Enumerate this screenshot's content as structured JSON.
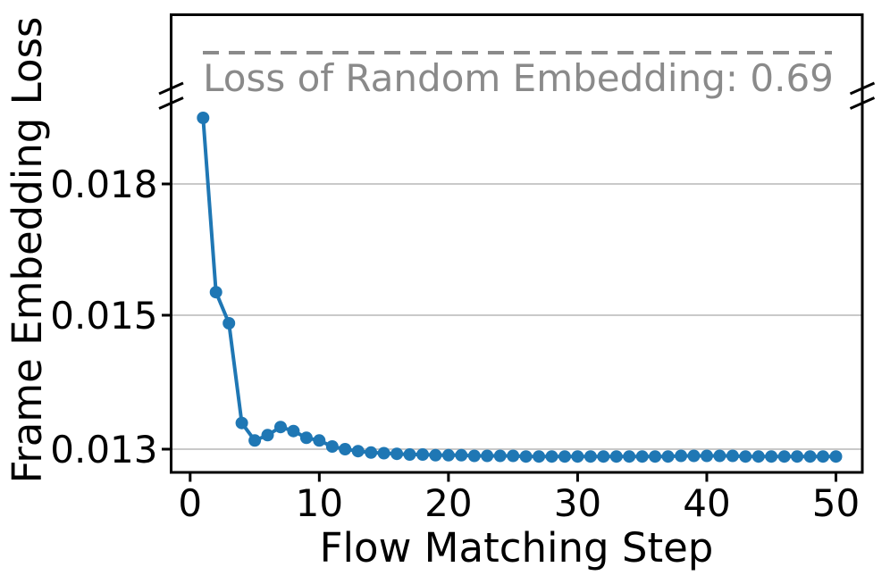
{
  "chart_data": {
    "type": "line",
    "title": "",
    "xlabel": "Flow Matching Step",
    "ylabel": "Frame Embedding Loss",
    "x": [
      1,
      2,
      3,
      4,
      5,
      6,
      7,
      8,
      9,
      10,
      11,
      12,
      13,
      14,
      15,
      16,
      17,
      18,
      19,
      20,
      21,
      22,
      23,
      24,
      25,
      26,
      27,
      28,
      29,
      30,
      31,
      32,
      33,
      34,
      35,
      36,
      37,
      38,
      39,
      40,
      41,
      42,
      43,
      44,
      45,
      46,
      47,
      48,
      49,
      50
    ],
    "series": [
      {
        "name": "Frame Embedding Loss",
        "values": [
          0.01949,
          0.01556,
          0.01488,
          0.01339,
          0.01313,
          0.01321,
          0.01333,
          0.01327,
          0.01317,
          0.01313,
          0.01304,
          0.013,
          0.01297,
          0.01295,
          0.01294,
          0.01293,
          0.01292,
          0.01292,
          0.01291,
          0.01291,
          0.01291,
          0.0129,
          0.0129,
          0.0129,
          0.0129,
          0.01289,
          0.01289,
          0.01289,
          0.01289,
          0.01289,
          0.01289,
          0.01289,
          0.01289,
          0.01289,
          0.01289,
          0.01289,
          0.01289,
          0.0129,
          0.0129,
          0.0129,
          0.0129,
          0.0129,
          0.01289,
          0.01289,
          0.01289,
          0.01289,
          0.01289,
          0.01289,
          0.01289,
          0.01289
        ]
      }
    ],
    "x_ticks": [
      0,
      10,
      20,
      30,
      40,
      50
    ],
    "x_tick_labels": [
      "0",
      "10",
      "20",
      "30",
      "40",
      "50"
    ],
    "y_ticks": [
      0.013,
      0.015,
      0.018
    ],
    "y_tick_labels": [
      "0.013",
      "0.015",
      "0.018"
    ],
    "xlim": [
      -1.5,
      52
    ],
    "grid": "horizontal-gridlines-on",
    "legend_position": "none",
    "axis_break": {
      "enabled": true,
      "annotation_label": "Loss of Random Embedding: 0.69",
      "annotation_value": 0.69,
      "reference_line_style": "dashed"
    },
    "colors": {
      "line": "#1f77b4",
      "marker": "#1f77b4",
      "annotation_text": "#8a8a8a",
      "dashed_line": "#8a8a8a",
      "grid": "#c9c9c9",
      "axis": "#000000",
      "background": "#ffffff"
    }
  }
}
